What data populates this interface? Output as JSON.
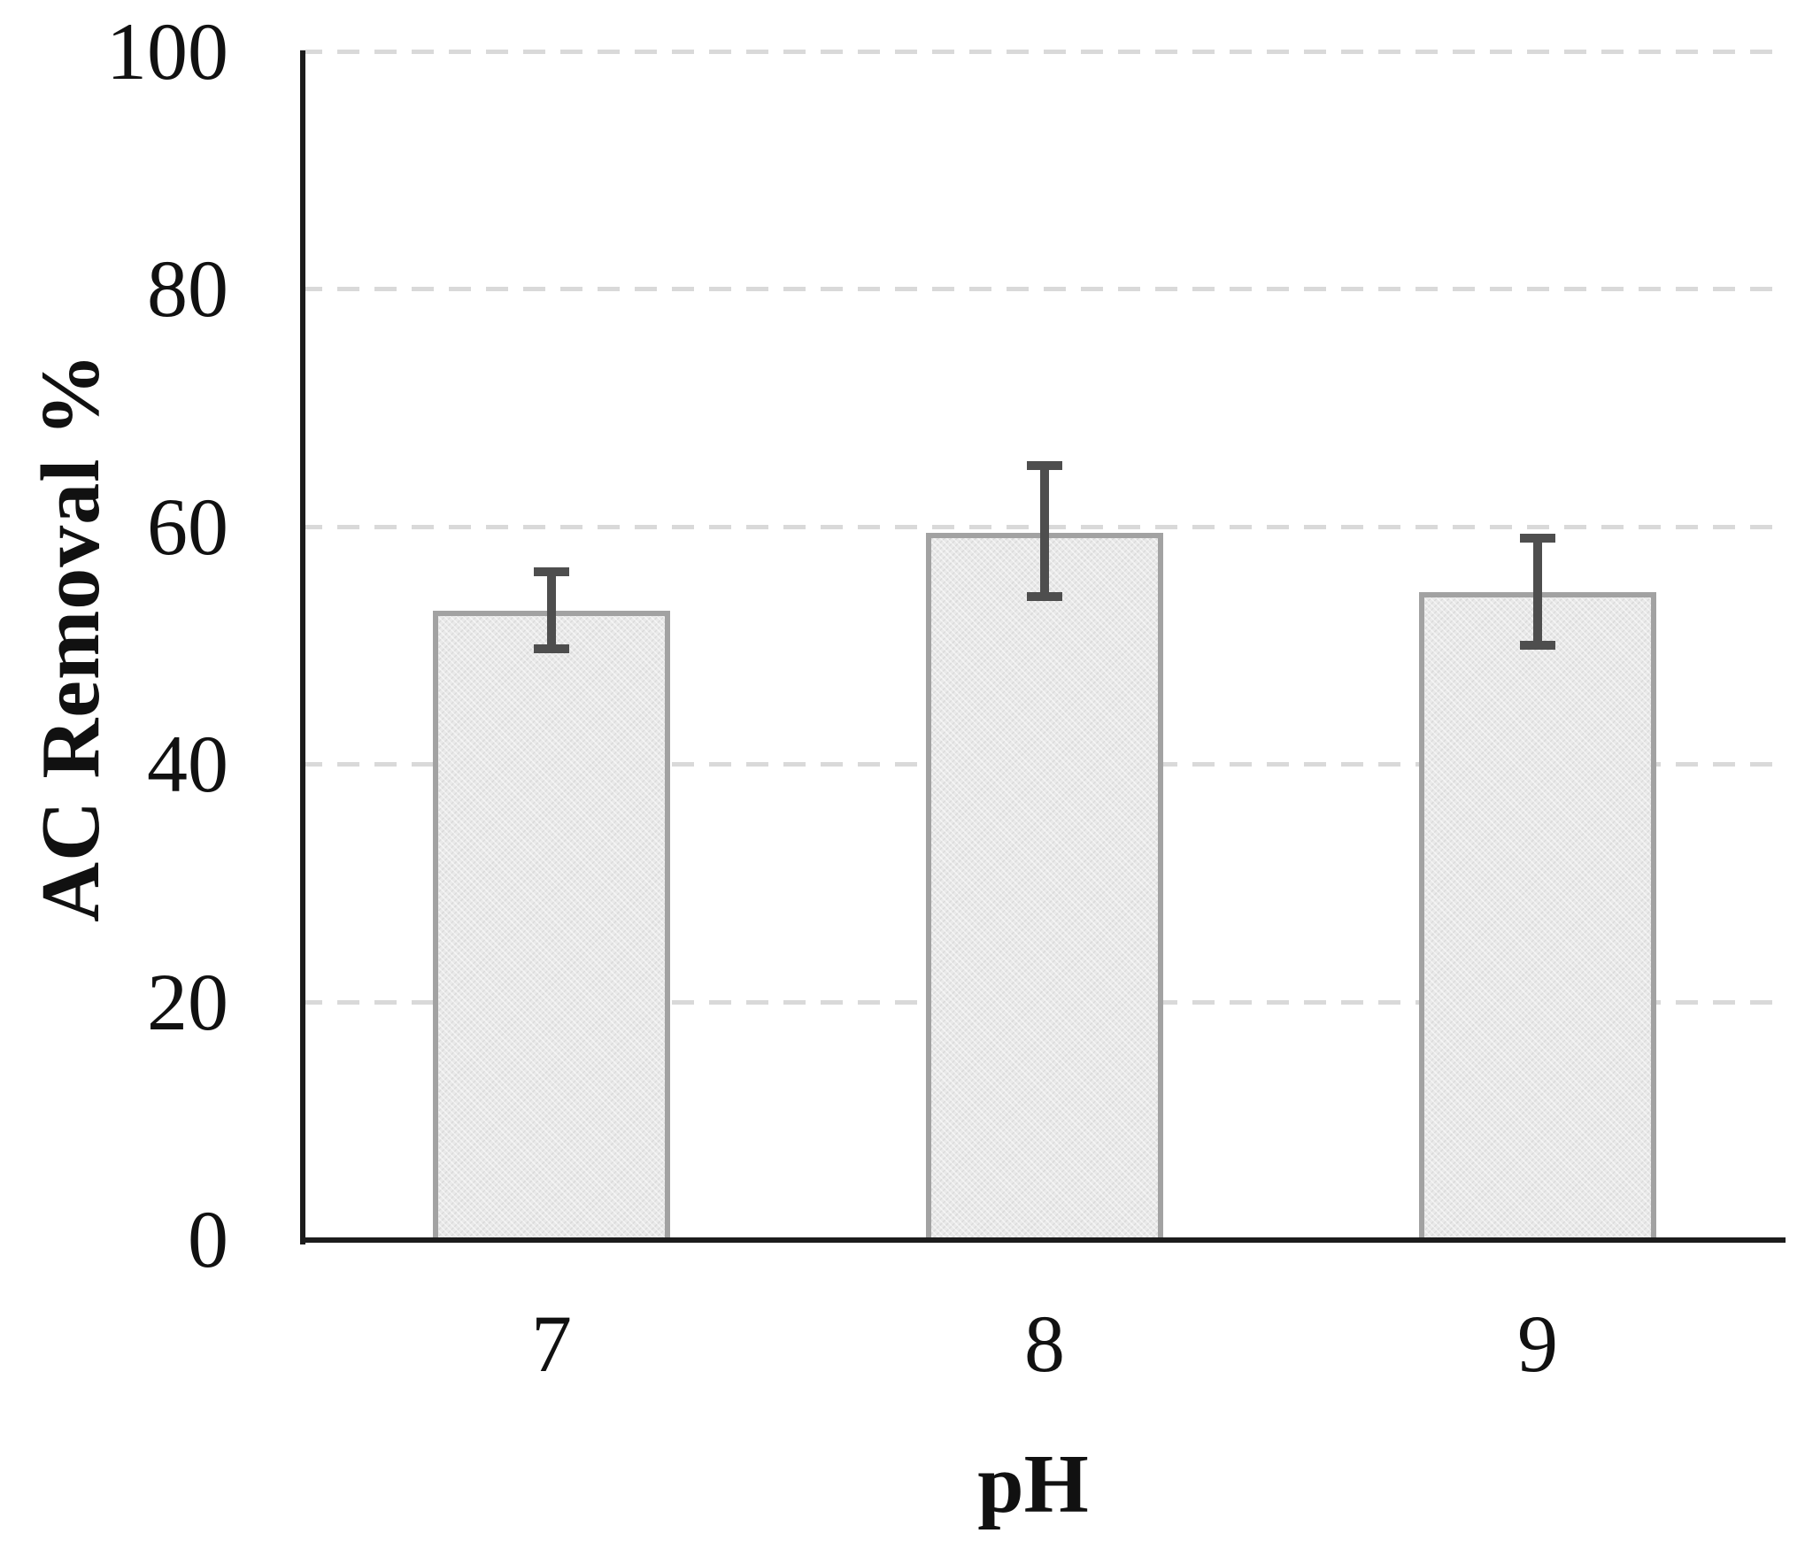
{
  "chart_data": {
    "type": "bar",
    "title": "",
    "xlabel": "pH",
    "ylabel": "AC Removal %",
    "categories": [
      "7",
      "8",
      "9"
    ],
    "series": [
      {
        "name": "AC Removal %",
        "values": [
          52.9,
          59.5,
          54.5
        ],
        "error_plus": [
          3.3,
          5.6,
          4.5
        ],
        "error_minus": [
          3.2,
          5.4,
          4.5
        ]
      }
    ],
    "ylim": [
      0,
      100
    ],
    "yticks": [
      0,
      20,
      40,
      60,
      80,
      100
    ],
    "grid": {
      "horizontal": true,
      "style": "dashed",
      "at_ticks": [
        20,
        40,
        60,
        80,
        100
      ]
    },
    "legend_position": "none",
    "colors": {
      "bar_fill": "#e9e9e9",
      "bar_border": "#a2a2a2",
      "error_bar": "#4e4e4e",
      "gridline": "#d9d9d9",
      "axis": "#1c1c1c",
      "text": "#111111",
      "background": "#ffffff"
    }
  }
}
